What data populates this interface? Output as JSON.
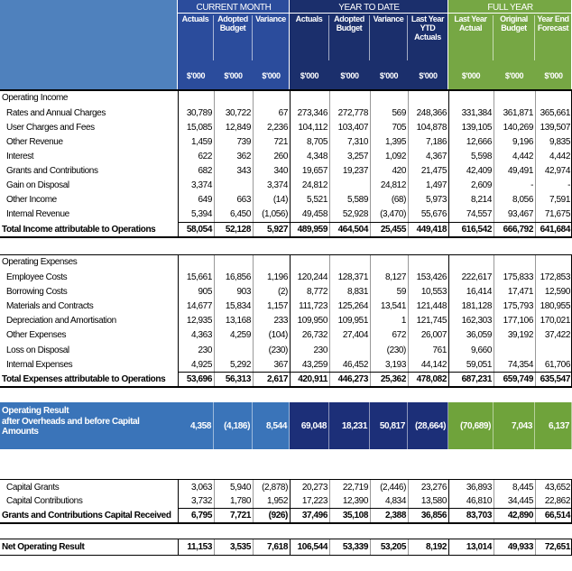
{
  "header": {
    "groups": [
      "CURRENT MONTH",
      "YEAR TO DATE",
      "FULL YEAR"
    ],
    "columns": [
      "Actuals",
      "Adopted Budget",
      "Variance",
      "Actuals",
      "Adopted Budget",
      "Variance",
      "Last Year YTD Actuals",
      "Last Year Actual",
      "Original Budget",
      "Year End Forecast"
    ],
    "units": [
      "$'000",
      "$'000",
      "$'000",
      "$'000",
      "$'000",
      "$'000",
      "$'000",
      "$'000",
      "$'000",
      "$'000"
    ]
  },
  "income": {
    "title": "Operating Income",
    "rows": [
      {
        "label": "Rates and Annual Charges",
        "values": [
          "30,789",
          "30,722",
          "67",
          "273,346",
          "272,778",
          "569",
          "248,366",
          "331,384",
          "361,871",
          "365,661"
        ]
      },
      {
        "label": "User Charges and Fees",
        "values": [
          "15,085",
          "12,849",
          "2,236",
          "104,112",
          "103,407",
          "705",
          "104,878",
          "139,105",
          "140,269",
          "139,507"
        ]
      },
      {
        "label": "Other Revenue",
        "values": [
          "1,459",
          "739",
          "721",
          "8,705",
          "7,310",
          "1,395",
          "7,186",
          "12,666",
          "9,196",
          "9,835"
        ]
      },
      {
        "label": "Interest",
        "values": [
          "622",
          "362",
          "260",
          "4,348",
          "3,257",
          "1,092",
          "4,367",
          "5,598",
          "4,442",
          "4,442"
        ]
      },
      {
        "label": "Grants and Contributions",
        "values": [
          "682",
          "343",
          "340",
          "19,657",
          "19,237",
          "420",
          "21,475",
          "42,409",
          "49,491",
          "42,974"
        ]
      },
      {
        "label": "Gain on Disposal",
        "values": [
          "3,374",
          null,
          "3,374",
          "24,812",
          null,
          "24,812",
          "1,497",
          "2,609",
          "-",
          "-"
        ]
      },
      {
        "label": "Other Income",
        "values": [
          "649",
          "663",
          "(14)",
          "5,521",
          "5,589",
          "(68)",
          "5,973",
          "8,214",
          "8,056",
          "7,591"
        ]
      },
      {
        "label": "Internal Revenue",
        "values": [
          "5,394",
          "6,450",
          "(1,056)",
          "49,458",
          "52,928",
          "(3,470)",
          "55,676",
          "74,557",
          "93,467",
          "71,675"
        ]
      }
    ],
    "total": {
      "label": "Total Income attributable to Operations",
      "values": [
        "58,054",
        "52,128",
        "5,927",
        "489,959",
        "464,504",
        "25,455",
        "449,418",
        "616,542",
        "666,792",
        "641,684"
      ]
    }
  },
  "expenses": {
    "title": "Operating Expenses",
    "rows": [
      {
        "label": "Employee Costs",
        "values": [
          "15,661",
          "16,856",
          "1,196",
          "120,244",
          "128,371",
          "8,127",
          "153,426",
          "222,617",
          "175,833",
          "172,853"
        ]
      },
      {
        "label": "Borrowing Costs",
        "values": [
          "905",
          "903",
          "(2)",
          "8,772",
          "8,831",
          "59",
          "10,553",
          "16,414",
          "17,471",
          "12,590"
        ]
      },
      {
        "label": "Materials and Contracts",
        "values": [
          "14,677",
          "15,834",
          "1,157",
          "111,723",
          "125,264",
          "13,541",
          "121,448",
          "181,128",
          "175,793",
          "180,955"
        ]
      },
      {
        "label": "Depreciation and Amortisation",
        "values": [
          "12,935",
          "13,168",
          "233",
          "109,950",
          "109,951",
          "1",
          "121,745",
          "162,303",
          "177,106",
          "170,021"
        ]
      },
      {
        "label": "Other Expenses",
        "values": [
          "4,363",
          "4,259",
          "(104)",
          "26,732",
          "27,404",
          "672",
          "26,007",
          "36,059",
          "39,192",
          "37,422"
        ]
      },
      {
        "label": "Loss on Disposal",
        "values": [
          "230",
          null,
          "(230)",
          "230",
          null,
          "(230)",
          "761",
          "9,660",
          null,
          null
        ]
      },
      {
        "label": "Internal Expenses",
        "values": [
          "4,925",
          "5,292",
          "367",
          "43,259",
          "46,452",
          "3,193",
          "44,142",
          "59,051",
          "74,354",
          "61,706"
        ]
      }
    ],
    "total": {
      "label": "Total Expenses attributable to Operations",
      "values": [
        "53,696",
        "56,313",
        "2,617",
        "420,911",
        "446,273",
        "25,362",
        "478,082",
        "687,231",
        "659,749",
        "635,547"
      ]
    }
  },
  "operating_result": {
    "title": "Operating Result",
    "label": "after Overheads and before Capital Amounts",
    "values": [
      "4,358",
      "(4,186)",
      "8,544",
      "69,048",
      "18,231",
      "50,817",
      "(28,664)",
      "(70,689)",
      "7,043",
      "6,137"
    ]
  },
  "capital": {
    "rows": [
      {
        "label": "Capital Grants",
        "values": [
          "3,063",
          "5,940",
          "(2,878)",
          "20,273",
          "22,719",
          "(2,446)",
          "23,276",
          "36,893",
          "8,445",
          "43,652"
        ]
      },
      {
        "label": "Capital Contributions",
        "values": [
          "3,732",
          "1,780",
          "1,952",
          "17,223",
          "12,390",
          "4,834",
          "13,580",
          "46,810",
          "34,445",
          "22,862"
        ]
      }
    ],
    "total": {
      "label": "Grants and Contributions Capital Received",
      "values": [
        "6,795",
        "7,721",
        "(926)",
        "37,496",
        "35,108",
        "2,388",
        "36,856",
        "83,703",
        "42,890",
        "66,514"
      ]
    }
  },
  "net": {
    "label": "Net Operating Result",
    "values": [
      "11,153",
      "3,535",
      "7,618",
      "106,544",
      "53,339",
      "53,205",
      "8,192",
      "13,014",
      "49,933",
      "72,651"
    ]
  }
}
